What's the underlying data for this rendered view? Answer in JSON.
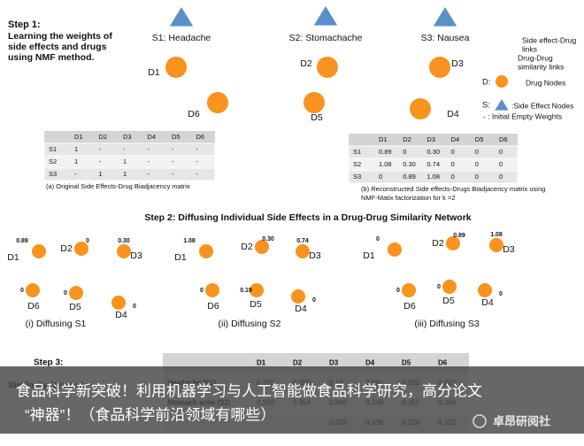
{
  "step1": {
    "title": "Step 1:",
    "lines": [
      "Learning the weights of",
      "side effects and drugs",
      "using NMF method."
    ]
  },
  "side_effects": [
    "S1: Headache",
    "S2: Stomachache",
    "S3: Nausea"
  ],
  "drugs": [
    "D1",
    "D2",
    "D3",
    "D6",
    "D5",
    "D4"
  ],
  "legend": {
    "links": [
      "Side effect-Drug",
      "links"
    ],
    "similarity": [
      "Drug-Drug",
      "similarity links"
    ],
    "drug_prefix": "D:",
    "drug_text": "Drug Nodes",
    "se_prefix": "S:",
    "se_text": ":Side Effect Nodes",
    "empty": "- : Initial Empty Weights"
  },
  "matrix_a": {
    "columns": [
      "D1",
      "D2",
      "D3",
      "D4",
      "D5",
      "D6"
    ],
    "rows": [
      {
        "label": "S1",
        "cells": [
          "1",
          "-",
          "-",
          "-",
          "-",
          "-"
        ]
      },
      {
        "label": "S2",
        "cells": [
          "1",
          "-",
          "1",
          "-",
          "-",
          "-"
        ]
      },
      {
        "label": "S3",
        "cells": [
          "-",
          "1",
          "1",
          "-",
          "-",
          "-"
        ]
      }
    ],
    "caption": [
      "(a) Original Side Effects-Drug Biadjacency matrix"
    ]
  },
  "matrix_b": {
    "columns": [
      "D1",
      "D2",
      "D3",
      "D4",
      "D5",
      "D6"
    ],
    "rows": [
      {
        "label": "S1",
        "cells": [
          "0.89",
          "0",
          "0.30",
          "0",
          "0",
          "0"
        ]
      },
      {
        "label": "S2",
        "cells": [
          "1.08",
          "0.30",
          "0.74",
          "0",
          "0",
          "0"
        ]
      },
      {
        "label": "S3",
        "cells": [
          "0",
          "0.89",
          "1.08",
          "0",
          "0",
          "0"
        ]
      }
    ],
    "caption": [
      "(b) Reconstructed Side effects-Drugs Biadjacency matrix using",
      "NMF-Matix factorization for k =2"
    ]
  },
  "step2": {
    "title": "Step 2: Diffusing Individual Side Effects in a Drug-Drug Similarity Network",
    "panels": [
      {
        "caption": "(i) Diffusing S1",
        "nodes": [
          {
            "label": "D1",
            "value": "0.89"
          },
          {
            "label": "D2",
            "value": "0"
          },
          {
            "label": "D3",
            "value": "0.30"
          },
          {
            "label": "D6",
            "value": "0"
          },
          {
            "label": "D5",
            "value": "0"
          },
          {
            "label": "D4",
            "value": "0"
          }
        ]
      },
      {
        "caption": "(ii) Diffusing S2",
        "nodes": [
          {
            "label": "D1",
            "value": "1.08"
          },
          {
            "label": "D2",
            "value": "0.30"
          },
          {
            "label": "D3",
            "value": "0.74"
          },
          {
            "label": "D6",
            "value": "0"
          },
          {
            "label": "D5",
            "value": "0.19"
          },
          {
            "label": "D4",
            "value": "0"
          }
        ]
      },
      {
        "caption": "(iii) Diffusing S3",
        "nodes": [
          {
            "label": "D1",
            "value": "0"
          },
          {
            "label": "D2",
            "value": "0.89"
          },
          {
            "label": "D3",
            "value": "1.08"
          },
          {
            "label": "D6",
            "value": "0"
          },
          {
            "label": "D5",
            "value": "0"
          },
          {
            "label": "D4",
            "value": "0"
          }
        ]
      }
    ]
  },
  "step3": {
    "title": "Step 3:",
    "subtitle": "Similarity Network",
    "table": {
      "columns": [
        "D1",
        "D2",
        "D3",
        "D4",
        "D5",
        "D6"
      ],
      "rows": [
        {
          "label": "Headache (S1)",
          "cells": [
            "0.205",
            "0.200",
            "0.19",
            "0.191",
            "0.192",
            "0.202"
          ]
        },
        {
          "label": "Stomach ache (S2)",
          "cells": [
            "0.358",
            "0.354",
            "0.348",
            "0.349",
            "0.352",
            "0.356"
          ]
        },
        {
          "cells": [
            "0.338",
            "0.336",
            "0.329",
            "0.322"
          ]
        }
      ]
    }
  },
  "overlay": {
    "caption": [
      "食品科学新突破！利用机器学习与人工智能做食品科学研究，高分论文",
      "“神器”！（食品科学前沿领域有哪些）"
    ],
    "watermark": "卓昂研阅社"
  }
}
